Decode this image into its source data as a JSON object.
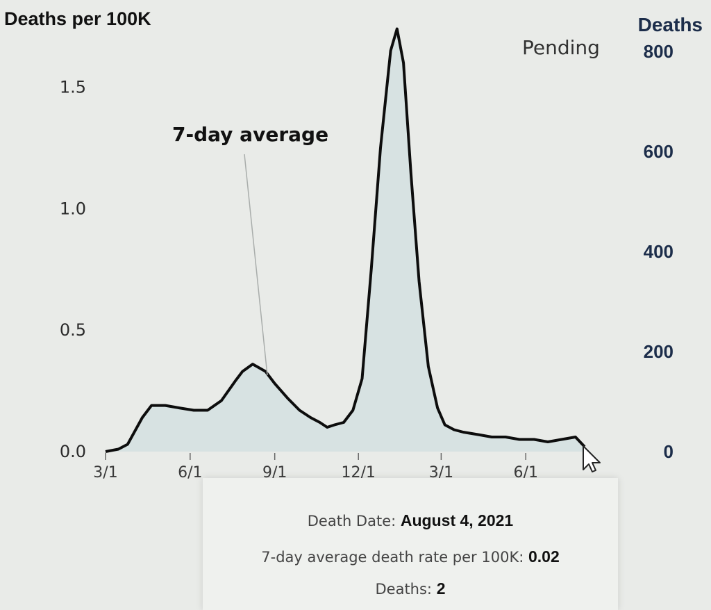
{
  "chart_data": {
    "type": "area",
    "title_left": "Deaths per 100K",
    "title_right": "Deaths",
    "left_ticks": [
      "0.0",
      "0.5",
      "1.0",
      "1.5"
    ],
    "right_ticks": [
      "0",
      "200",
      "400",
      "600",
      "800"
    ],
    "x_ticks": [
      "3/1",
      "6/1",
      "9/1",
      "12/1",
      "3/1",
      "6/1"
    ],
    "ylim": [
      0,
      1.75
    ],
    "y2lim": [
      0,
      850
    ],
    "pending_label": "Pending",
    "annotation": "7-day average",
    "grid": false,
    "line_color": "#0d0d0d",
    "fill_color": "#d7e2e2",
    "series": [
      {
        "x": [
          "2020-03-01",
          "2020-03-15",
          "2020-03-25",
          "2020-04-10",
          "2020-04-20",
          "2020-05-05",
          "2020-05-20",
          "2020-06-05",
          "2020-06-20",
          "2020-07-05",
          "2020-07-20",
          "2020-07-28",
          "2020-08-08",
          "2020-08-22",
          "2020-09-01",
          "2020-09-15",
          "2020-09-28",
          "2020-10-10",
          "2020-10-20",
          "2020-10-28",
          "2020-11-05",
          "2020-11-15",
          "2020-11-25",
          "2020-12-05",
          "2020-12-15",
          "2020-12-25",
          "2021-01-05",
          "2021-01-12",
          "2021-01-19",
          "2021-01-27",
          "2021-02-05",
          "2021-02-15",
          "2021-02-25",
          "2021-03-05",
          "2021-03-15",
          "2021-03-25",
          "2021-04-10",
          "2021-04-25",
          "2021-05-10",
          "2021-05-25",
          "2021-06-10",
          "2021-06-25",
          "2021-07-10",
          "2021-07-25",
          "2021-08-04"
        ],
        "y": [
          0.0,
          0.01,
          0.03,
          0.14,
          0.19,
          0.19,
          0.18,
          0.17,
          0.17,
          0.21,
          0.29,
          0.33,
          0.36,
          0.33,
          0.28,
          0.22,
          0.17,
          0.14,
          0.12,
          0.1,
          0.11,
          0.12,
          0.17,
          0.3,
          0.75,
          1.25,
          1.65,
          1.74,
          1.6,
          1.15,
          0.7,
          0.35,
          0.18,
          0.11,
          0.09,
          0.08,
          0.07,
          0.06,
          0.06,
          0.05,
          0.05,
          0.04,
          0.05,
          0.06,
          0.02
        ]
      }
    ]
  },
  "tooltip": {
    "date_label": "Death Date:",
    "date_value": "August 4, 2021",
    "rate_label": "7-day average death rate per 100K:",
    "rate_value": "0.02",
    "deaths_label": "Deaths:",
    "deaths_value": "2"
  }
}
